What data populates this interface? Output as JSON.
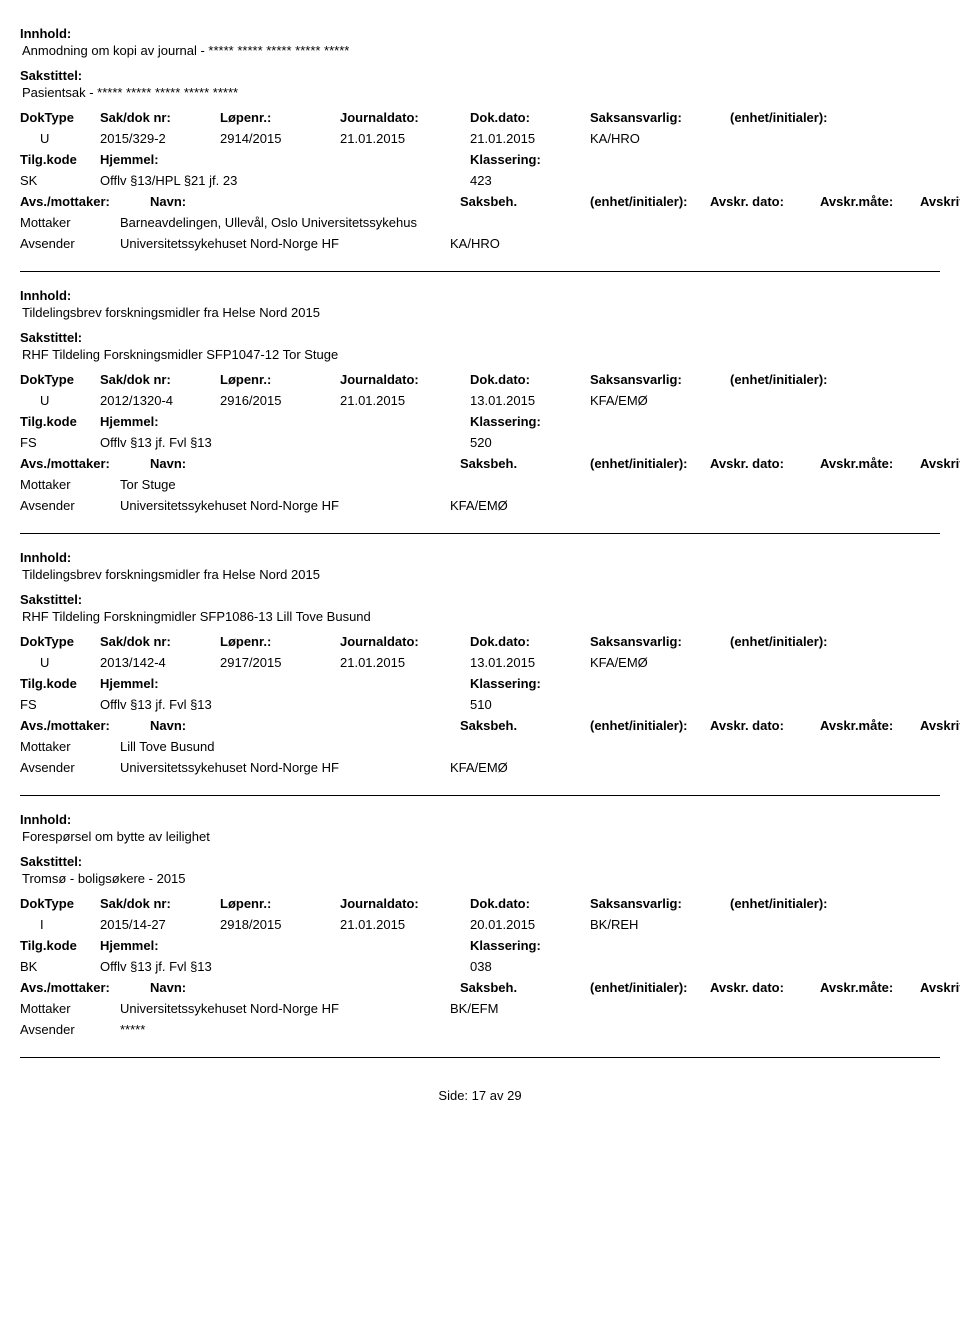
{
  "labels": {
    "innhold": "Innhold:",
    "sakstittel": "Sakstittel:",
    "doktype": "DokType",
    "sakdok": "Sak/dok nr:",
    "lopenr": "Løpenr.:",
    "journaldato": "Journaldato:",
    "dokdato": "Dok.dato:",
    "saksansvarlig": "Saksansvarlig:",
    "enhet": "(enhet/initialer):",
    "tilgkode": "Tilg.kode",
    "hjemmel": "Hjemmel:",
    "klassering": "Klassering:",
    "avsmottaker": "Avs./mottaker:",
    "navn": "Navn:",
    "saksbeh": "Saksbeh.",
    "avskrdato": "Avskr. dato:",
    "avskrmate": "Avskr.måte:",
    "avskrlnr": "Avskriv lnr.:",
    "mottaker": "Mottaker",
    "avsender": "Avsender"
  },
  "footer": {
    "side": "Side:",
    "page": "17",
    "av": "av",
    "total": "29"
  },
  "records": [
    {
      "innhold": "Anmodning om kopi av journal  - ***** ***** *****  ***** *****",
      "sakstittel": "Pasientsak - ***** ***** ***** ***** *****",
      "doktype": "U",
      "sakdok": "2015/329-2",
      "lopenr": "2914/2015",
      "journaldato": "21.01.2015",
      "dokdato": "21.01.2015",
      "saksansvarlig": "KA/HRO",
      "tilgkode": "SK",
      "hjemmel": "Offlv §13/HPL §21 jf. 23",
      "klassering": "423",
      "parties": [
        {
          "role": "Mottaker",
          "name": "Barneavdelingen, Ullevål, Oslo Universitetssykehus",
          "unit": ""
        },
        {
          "role": "Avsender",
          "name": "Universitetssykehuset Nord-Norge HF",
          "unit": "KA/HRO"
        }
      ]
    },
    {
      "innhold": "Tildelingsbrev forskningsmidler fra Helse Nord 2015",
      "sakstittel": "RHF Tildeling Forskningsmidler SFP1047-12 Tor Stuge",
      "doktype": "U",
      "sakdok": "2012/1320-4",
      "lopenr": "2916/2015",
      "journaldato": "21.01.2015",
      "dokdato": "13.01.2015",
      "saksansvarlig": "KFA/EMØ",
      "tilgkode": "FS",
      "hjemmel": "Offlv §13 jf. Fvl §13",
      "klassering": "520",
      "parties": [
        {
          "role": "Mottaker",
          "name": "Tor Stuge",
          "unit": ""
        },
        {
          "role": "Avsender",
          "name": "Universitetssykehuset Nord-Norge HF",
          "unit": "KFA/EMØ"
        }
      ]
    },
    {
      "innhold": "Tildelingsbrev forskningsmidler fra Helse Nord 2015",
      "sakstittel": "RHF Tildeling Forskningmidler SFP1086-13 Lill Tove Busund",
      "doktype": "U",
      "sakdok": "2013/142-4",
      "lopenr": "2917/2015",
      "journaldato": "21.01.2015",
      "dokdato": "13.01.2015",
      "saksansvarlig": "KFA/EMØ",
      "tilgkode": "FS",
      "hjemmel": "Offlv §13 jf. Fvl §13",
      "klassering": "510",
      "parties": [
        {
          "role": "Mottaker",
          "name": "Lill Tove Busund",
          "unit": ""
        },
        {
          "role": "Avsender",
          "name": "Universitetssykehuset Nord-Norge HF",
          "unit": "KFA/EMØ"
        }
      ]
    },
    {
      "innhold": "Forespørsel om bytte av leilighet",
      "sakstittel": "Tromsø - boligsøkere - 2015",
      "doktype": "I",
      "sakdok": "2015/14-27",
      "lopenr": "2918/2015",
      "journaldato": "21.01.2015",
      "dokdato": "20.01.2015",
      "saksansvarlig": "BK/REH",
      "tilgkode": "BK",
      "hjemmel": "Offlv §13 jf. Fvl §13",
      "klassering": "038",
      "parties": [
        {
          "role": "Mottaker",
          "name": "Universitetssykehuset Nord-Norge HF",
          "unit": "BK/EFM"
        },
        {
          "role": "Avsender",
          "name": "*****",
          "unit": ""
        }
      ]
    }
  ]
}
